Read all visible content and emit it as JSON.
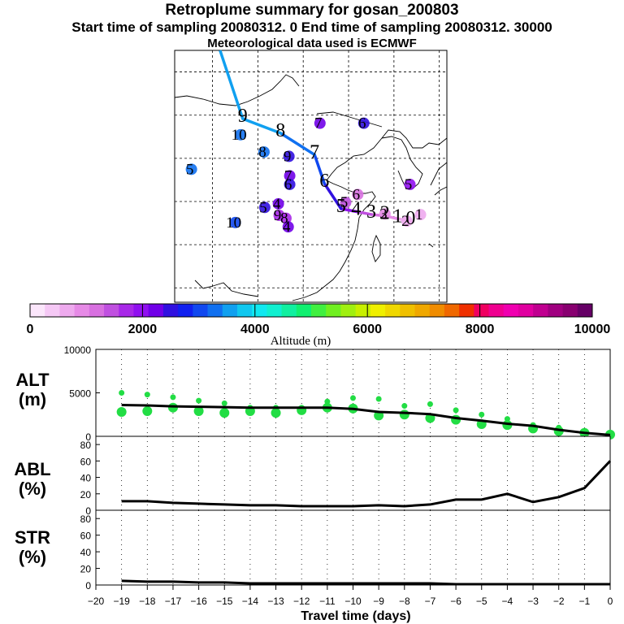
{
  "header": {
    "title": "Retroplume summary for gosan_200803",
    "sampling_line": "Start time of sampling 20080312.     0     End time of sampling 20080312. 30000",
    "met_line": "Meteorological data used is ECMWF"
  },
  "colorbar": {
    "title": "Altitude (m)",
    "min": 0,
    "max": 10000,
    "tick_labels": [
      "0",
      "2000",
      "4000",
      "6000",
      "8000",
      "10000"
    ],
    "colors": [
      "#fbe6fb",
      "#f5c8f5",
      "#eeaaee",
      "#e68ae6",
      "#d870e0",
      "#c050e0",
      "#a828e8",
      "#9010f0",
      "#7000e8",
      "#3010e0",
      "#1020f0",
      "#1048f0",
      "#1070f0",
      "#10a0f0",
      "#10c8f0",
      "#10e8f0",
      "#10f0d0",
      "#10f0a0",
      "#10f070",
      "#40f040",
      "#70f020",
      "#a0f010",
      "#c8f000",
      "#f0f000",
      "#f0d800",
      "#f0c000",
      "#f0a800",
      "#f08c00",
      "#f06800",
      "#f03000",
      "#f00060",
      "#f00090",
      "#f000b0",
      "#e000a0",
      "#c00090",
      "#a00080",
      "#880070",
      "#660066"
    ]
  },
  "map": {
    "trajectory": [
      {
        "label": "0",
        "lat": 33.3,
        "lon": 126.2,
        "alt": 400
      },
      {
        "label": "1",
        "lat": 33.6,
        "lon": 124.5,
        "alt": 700
      },
      {
        "label": "2",
        "lat": 34.0,
        "lon": 122.8,
        "alt": 1000
      },
      {
        "label": "3",
        "lat": 34.2,
        "lon": 121.0,
        "alt": 1300
      },
      {
        "label": "4",
        "lat": 34.6,
        "lon": 119.0,
        "alt": 1700
      },
      {
        "label": "5",
        "lat": 35.0,
        "lon": 117.0,
        "alt": 2200
      },
      {
        "label": "6",
        "lat": 38.5,
        "lon": 114.8,
        "alt": 2700
      },
      {
        "label": "7",
        "lat": 42.5,
        "lon": 113.5,
        "alt": 3100
      },
      {
        "label": "8",
        "lat": 45.5,
        "lon": 109.0,
        "alt": 3400
      },
      {
        "label": "9",
        "lat": 47.5,
        "lon": 104.0,
        "alt": 3600
      }
    ],
    "cluster_labels": [
      {
        "text": "7",
        "lat": 46.2,
        "lon": 114.0,
        "alt": 2300
      },
      {
        "text": "6",
        "lat": 46.2,
        "lon": 119.8,
        "alt": 2400
      },
      {
        "text": "10",
        "lat": 44.6,
        "lon": 103.5,
        "alt": 3300
      },
      {
        "text": "8",
        "lat": 42.2,
        "lon": 106.6,
        "alt": 3200
      },
      {
        "text": "9",
        "lat": 41.6,
        "lon": 109.9,
        "alt": 2600
      },
      {
        "text": "5",
        "lat": 39.8,
        "lon": 97.0,
        "alt": 3400
      },
      {
        "text": "7",
        "lat": 38.9,
        "lon": 110.0,
        "alt": 2300
      },
      {
        "text": "6",
        "lat": 37.7,
        "lon": 110.0,
        "alt": 2500
      },
      {
        "text": "5",
        "lat": 37.7,
        "lon": 125.9,
        "alt": 1900
      },
      {
        "text": "6",
        "lat": 36.3,
        "lon": 119.0,
        "alt": 1100
      },
      {
        "text": "5",
        "lat": 35.2,
        "lon": 117.4,
        "alt": 1500
      },
      {
        "text": "4",
        "lat": 35.0,
        "lon": 108.5,
        "alt": 2300
      },
      {
        "text": "5",
        "lat": 34.5,
        "lon": 106.7,
        "alt": 2400
      },
      {
        "text": "10",
        "lat": 32.4,
        "lon": 102.8,
        "alt": 3100
      },
      {
        "text": "9",
        "lat": 33.4,
        "lon": 108.6,
        "alt": 1800
      },
      {
        "text": "8",
        "lat": 33.0,
        "lon": 109.5,
        "alt": 1700
      },
      {
        "text": "4",
        "lat": 31.8,
        "lon": 109.8,
        "alt": 2300
      },
      {
        "text": "3",
        "lat": 33.6,
        "lon": 122.6,
        "alt": 1000
      },
      {
        "text": "2",
        "lat": 32.6,
        "lon": 125.5,
        "alt": 700
      },
      {
        "text": "1",
        "lat": 33.5,
        "lon": 127.3,
        "alt": 600
      }
    ]
  },
  "panels": {
    "alt": {
      "label_line1": "ALT",
      "label_line2": "(m)",
      "ymin": 0,
      "ymax": 10000,
      "ticks": [
        0,
        5000,
        10000
      ]
    },
    "abl": {
      "label_line1": "ABL",
      "label_line2": "(%)",
      "ymin": 0,
      "ymax": 90,
      "ticks": [
        0,
        20,
        40,
        60,
        80
      ]
    },
    "str": {
      "label_line1": "STR",
      "label_line2": "(%)",
      "ymin": 0,
      "ymax": 90,
      "ticks": [
        0,
        20,
        40,
        60,
        80
      ]
    }
  },
  "chart_data": {
    "type": "line",
    "x_label": "Travel time (days)",
    "xlim": [
      -20,
      0
    ],
    "x_ticks": [
      -20,
      -19,
      -18,
      -17,
      -16,
      -15,
      -14,
      -13,
      -12,
      -11,
      -10,
      -9,
      -8,
      -7,
      -6,
      -5,
      -4,
      -3,
      -2,
      -1,
      0
    ],
    "x": [
      -19,
      -18,
      -17,
      -16,
      -15,
      -14,
      -13,
      -12,
      -11,
      -10,
      -9,
      -8,
      -7,
      -6,
      -5,
      -4,
      -3,
      -2,
      -1,
      0
    ],
    "series": [
      {
        "name": "ALT",
        "unit": "m",
        "values": [
          3600,
          3550,
          3450,
          3400,
          3350,
          3300,
          3300,
          3300,
          3300,
          3150,
          2800,
          2700,
          2550,
          2100,
          1800,
          1450,
          1200,
          750,
          400,
          150
        ]
      },
      {
        "name": "ABL",
        "unit": "%",
        "values": [
          11,
          11,
          9,
          8,
          7,
          6,
          6,
          5,
          5,
          5,
          6,
          5,
          7,
          13,
          13,
          20,
          10,
          16,
          27,
          60
        ]
      },
      {
        "name": "STR",
        "unit": "%",
        "values": [
          5,
          4,
          4,
          3,
          3,
          2,
          2,
          2,
          2,
          2,
          2,
          2,
          2,
          1,
          1,
          1,
          1,
          1,
          1,
          1
        ]
      }
    ],
    "alt_clusters": [
      {
        "x": -19,
        "alt": [
          5000,
          2800
        ]
      },
      {
        "x": -18,
        "alt": [
          4800,
          2900
        ]
      },
      {
        "x": -17,
        "alt": [
          4500,
          3300
        ]
      },
      {
        "x": -16,
        "alt": [
          4100,
          2900
        ]
      },
      {
        "x": -15,
        "alt": [
          3800,
          2700
        ]
      },
      {
        "x": -14,
        "alt": [
          3300,
          2900
        ]
      },
      {
        "x": -13,
        "alt": [
          3300,
          2700
        ]
      },
      {
        "x": -12,
        "alt": [
          3300,
          3000
        ]
      },
      {
        "x": -11,
        "alt": [
          4000,
          3300
        ]
      },
      {
        "x": -10,
        "alt": [
          4400,
          3200
        ]
      },
      {
        "x": -9,
        "alt": [
          4300,
          2400
        ]
      },
      {
        "x": -8,
        "alt": [
          3500,
          2500
        ]
      },
      {
        "x": -7,
        "alt": [
          3700,
          2100
        ]
      },
      {
        "x": -6,
        "alt": [
          3000,
          1900
        ]
      },
      {
        "x": -5,
        "alt": [
          2500,
          1400
        ]
      },
      {
        "x": -4,
        "alt": [
          2000,
          1300
        ]
      },
      {
        "x": -3,
        "alt": [
          1300,
          900
        ]
      },
      {
        "x": -2,
        "alt": [
          1000,
          600
        ]
      },
      {
        "x": -1,
        "alt": [
          500,
          400
        ]
      },
      {
        "x": 0,
        "alt": [
          300,
          200
        ]
      }
    ]
  }
}
